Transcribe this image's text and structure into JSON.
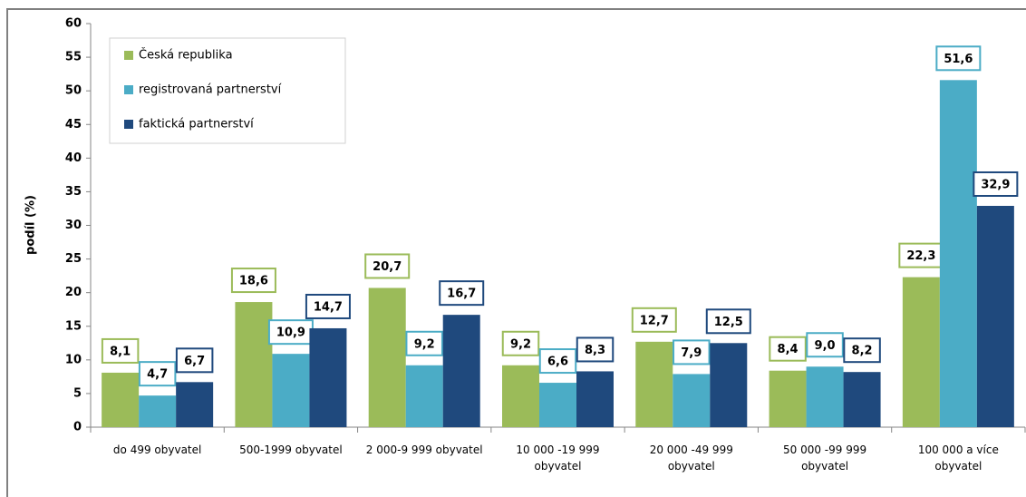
{
  "chart_data": {
    "type": "bar",
    "y_label": "podíl (%)",
    "categories": [
      "do 499 obyvatel",
      "500-1999 obyvatel",
      "2 000-9 999 obyvatel",
      "10 000 -19 999 obyvatel",
      "20 000 -49 999 obyvatel",
      "50 000 -99 999 obyvatel",
      "100 000 a více obyvatel"
    ],
    "series": [
      {
        "name": "Česká republika",
        "color": "#9bbb59",
        "values": [
          8.1,
          18.6,
          20.7,
          9.2,
          12.7,
          8.4,
          22.3
        ],
        "value_labels": [
          "8,1",
          "18,6",
          "20,7",
          "9,2",
          "12,7",
          "8,4",
          "22,3"
        ]
      },
      {
        "name": "registrovaná partnerství",
        "color": "#4bacc6",
        "values": [
          4.7,
          10.9,
          9.2,
          6.6,
          7.9,
          9.0,
          51.6
        ],
        "value_labels": [
          "4,7",
          "10,9",
          "9,2",
          "6,6",
          "7,9",
          "9,0",
          "51,6"
        ]
      },
      {
        "name": "faktická partnerství",
        "color": "#1f497d",
        "values": [
          6.7,
          14.7,
          16.7,
          8.3,
          12.5,
          8.2,
          32.9
        ],
        "value_labels": [
          "6,7",
          "14,7",
          "16,7",
          "8,3",
          "12,5",
          "8,2",
          "32,9"
        ]
      }
    ],
    "ylim": [
      0,
      60
    ],
    "yticks": [
      0,
      5,
      10,
      15,
      20,
      25,
      30,
      35,
      40,
      45,
      50,
      55,
      60
    ],
    "grid": false,
    "legend": "top-left"
  }
}
